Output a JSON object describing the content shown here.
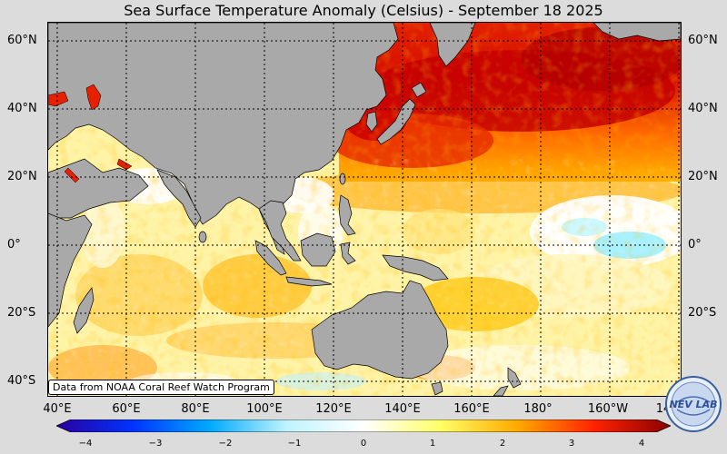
{
  "title": "Sea Surface Temperature Anomaly (Celsius) - September 18 2025",
  "latitude_labels": [
    "60°N",
    "40°N",
    "20°N",
    "0°",
    "20°S",
    "40°S"
  ],
  "longitude_labels": [
    "40°E",
    "60°E",
    "80°E",
    "100°E",
    "120°E",
    "140°E",
    "160°E",
    "180°",
    "160°W",
    "14"
  ],
  "credit": "Data from NOAA Coral Reef Watch Program",
  "colorbar": {
    "min": -4,
    "max": 4,
    "ticks": [
      "−4",
      "−3",
      "−2",
      "−1",
      "0",
      "1",
      "2",
      "3",
      "4"
    ],
    "colors": [
      "#2a00a0",
      "#0033ff",
      "#00aaff",
      "#bff4ff",
      "#ffffff",
      "#ffff66",
      "#ffaa00",
      "#ff2200",
      "#8a0000"
    ]
  },
  "logo_text": "NEV LAB",
  "colors": {
    "land": "#a9a9a9",
    "grid": "#000000",
    "neutral_ocean": "#fff3a6"
  }
}
